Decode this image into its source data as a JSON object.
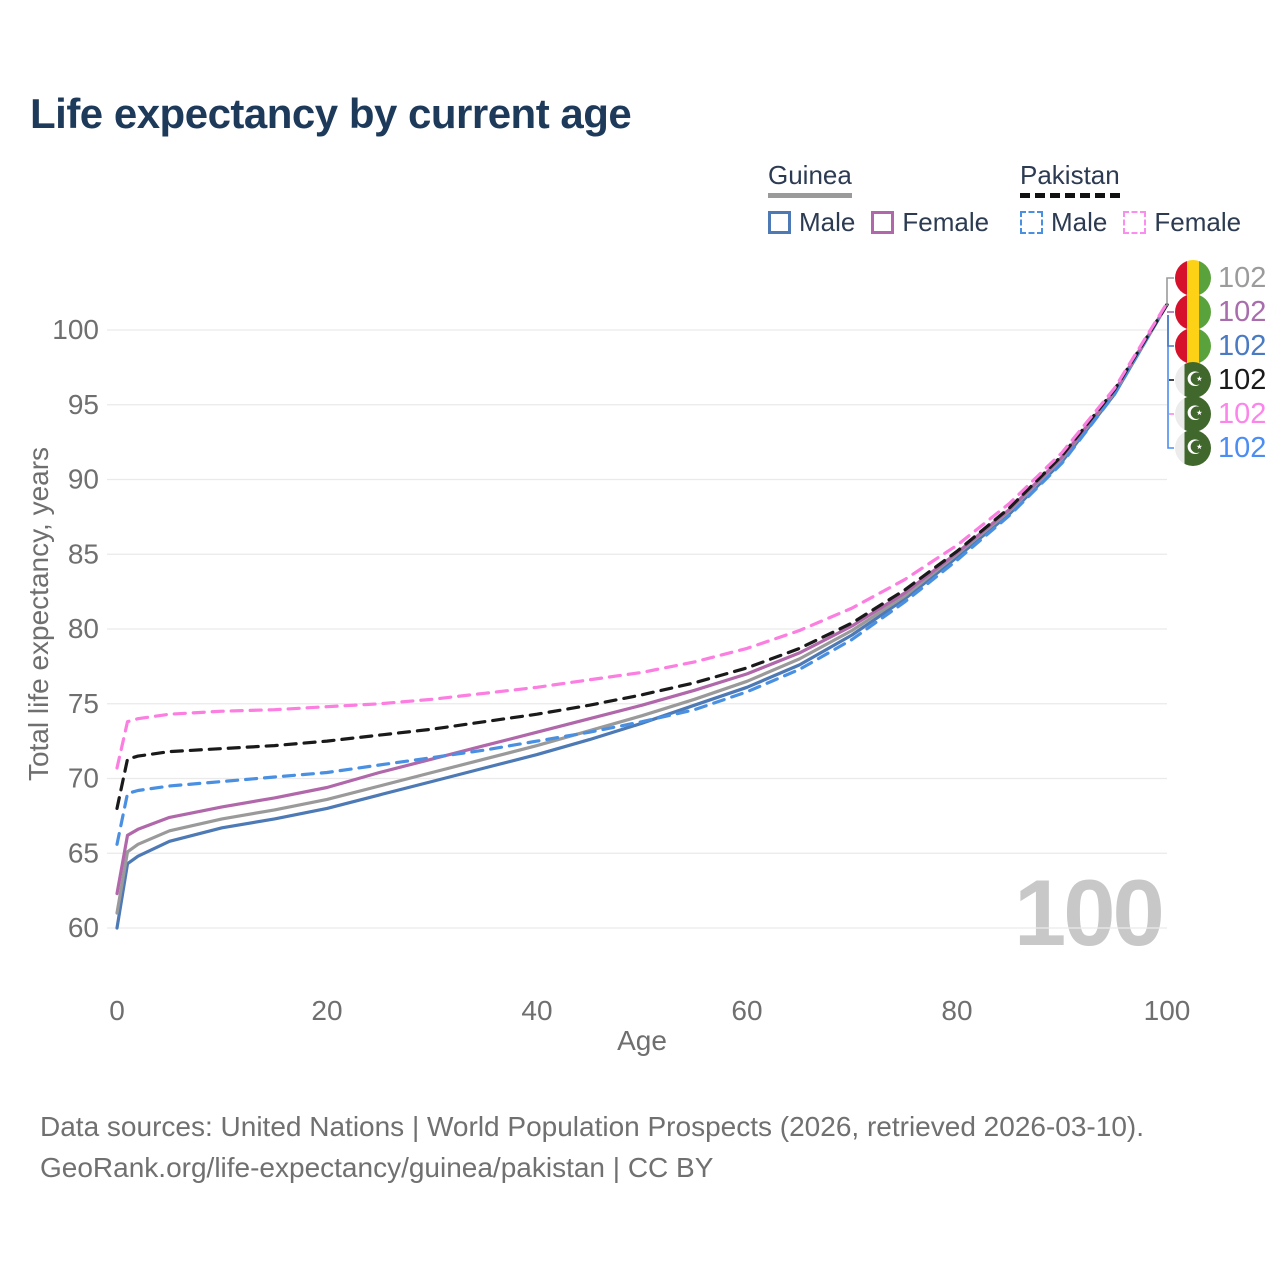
{
  "title": "Life expectancy by current age",
  "legend": {
    "groups": [
      {
        "label": "Guinea",
        "line_style": "solid",
        "line_color": "#9a9a9a",
        "items": [
          {
            "label": "Male",
            "color": "#4d79b5",
            "swatch": "solid"
          },
          {
            "label": "Female",
            "color": "#b168ab",
            "swatch": "solid"
          }
        ]
      },
      {
        "label": "Pakistan",
        "line_style": "dashed",
        "line_color": "#111111",
        "items": [
          {
            "label": "Male",
            "color": "#4a90e2",
            "swatch": "dashed"
          },
          {
            "label": "Female",
            "color": "#fb8df0",
            "swatch": "dashed"
          }
        ]
      }
    ]
  },
  "badges": {
    "rows": [
      {
        "flag": "guinea",
        "value": "102",
        "color": "#9b9b9b"
      },
      {
        "flag": "guinea",
        "value": "102",
        "color": "#a86dad"
      },
      {
        "flag": "guinea",
        "value": "102",
        "color": "#4a7ac2"
      },
      {
        "flag": "pakistan",
        "value": "102",
        "color": "#1a1a1a"
      },
      {
        "flag": "pakistan",
        "value": "102",
        "color": "#fb85ea"
      },
      {
        "flag": "pakistan",
        "value": "102",
        "color": "#4b8df2"
      }
    ]
  },
  "watermark": "100",
  "footer": {
    "line1": "Data sources: United Nations | World Population Prospects (2026, retrieved 2026-03-10).",
    "line2": "GeoRank.org/life-expectancy/guinea/pakistan | CC BY"
  },
  "chart_data": {
    "type": "line",
    "title": "Life expectancy by current age",
    "xlabel": "Age",
    "ylabel": "Total life expectancy, years",
    "xlim": [
      0,
      100
    ],
    "ylim": [
      58,
      103
    ],
    "grid": "horizontal",
    "legend_position": "top-right",
    "xticks": [
      0,
      20,
      40,
      60,
      80,
      100
    ],
    "yticks": [
      60,
      65,
      70,
      75,
      80,
      85,
      90,
      95,
      100
    ],
    "x": [
      0,
      1,
      2,
      5,
      10,
      15,
      20,
      25,
      30,
      35,
      40,
      45,
      50,
      55,
      60,
      65,
      70,
      75,
      80,
      85,
      90,
      95,
      100
    ],
    "series": [
      {
        "name": "Guinea Male",
        "country": "Guinea",
        "sex": "Male",
        "style": "solid",
        "color": "#4d79b5",
        "values": [
          60.0,
          64.3,
          64.8,
          65.8,
          66.7,
          67.3,
          68.0,
          68.9,
          69.8,
          70.7,
          71.6,
          72.6,
          73.7,
          74.9,
          76.1,
          77.6,
          79.6,
          82.0,
          84.8,
          87.7,
          91.2,
          95.7,
          101.7
        ]
      },
      {
        "name": "Guinea Both sexes",
        "country": "Guinea",
        "sex": "Both",
        "style": "solid",
        "color": "#9a9a9a",
        "values": [
          61.0,
          65.1,
          65.6,
          66.5,
          67.3,
          67.9,
          68.6,
          69.5,
          70.4,
          71.3,
          72.2,
          73.2,
          74.2,
          75.3,
          76.5,
          78.0,
          79.9,
          82.2,
          85.0,
          87.9,
          91.4,
          95.8,
          101.7
        ]
      },
      {
        "name": "Guinea Female",
        "country": "Guinea",
        "sex": "Female",
        "style": "solid",
        "color": "#b168ab",
        "values": [
          62.3,
          66.2,
          66.6,
          67.4,
          68.1,
          68.7,
          69.4,
          70.4,
          71.3,
          72.2,
          73.1,
          74.0,
          74.9,
          75.9,
          77.0,
          78.4,
          80.2,
          82.4,
          85.1,
          88.0,
          91.5,
          95.9,
          101.7
        ]
      },
      {
        "name": "Pakistan Male",
        "country": "Pakistan",
        "sex": "Male",
        "style": "dashed",
        "color": "#4a90e2",
        "values": [
          65.6,
          69.0,
          69.2,
          69.5,
          69.8,
          70.1,
          70.4,
          70.9,
          71.4,
          71.9,
          72.5,
          73.1,
          73.8,
          74.6,
          75.8,
          77.3,
          79.3,
          81.8,
          84.6,
          87.6,
          91.1,
          95.7,
          101.7
        ]
      },
      {
        "name": "Pakistan Both sexes",
        "country": "Pakistan",
        "sex": "Both",
        "style": "dashed",
        "color": "#1a1a1a",
        "values": [
          68.0,
          71.3,
          71.5,
          71.8,
          72.0,
          72.2,
          72.5,
          72.9,
          73.3,
          73.8,
          74.3,
          74.9,
          75.6,
          76.4,
          77.4,
          78.7,
          80.4,
          82.6,
          85.2,
          88.1,
          91.6,
          96.0,
          101.7
        ]
      },
      {
        "name": "Pakistan Female",
        "country": "Pakistan",
        "sex": "Female",
        "style": "dashed",
        "color": "#fb7ee0",
        "values": [
          70.7,
          73.8,
          74.0,
          74.3,
          74.5,
          74.6,
          74.8,
          75.0,
          75.3,
          75.7,
          76.1,
          76.6,
          77.1,
          77.8,
          78.7,
          79.9,
          81.4,
          83.3,
          85.6,
          88.4,
          91.8,
          96.1,
          101.8
        ]
      }
    ],
    "endpoint_labels": [
      "102",
      "102",
      "102",
      "102",
      "102",
      "102"
    ]
  }
}
